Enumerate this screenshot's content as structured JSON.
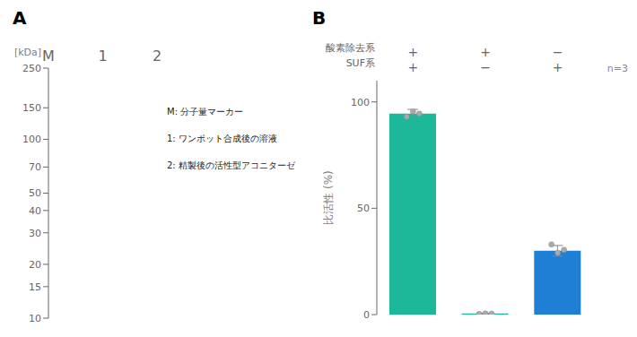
{
  "chart_data": [
    {
      "type": "gel",
      "title": "A",
      "categories": [
        "M",
        "1",
        "2"
      ],
      "ylabel": "[kDa]",
      "ylim": [
        10,
        250
      ],
      "yticks": [
        250,
        150,
        100,
        70,
        50,
        40,
        30,
        20,
        15,
        10
      ],
      "log": "y",
      "color": "#ddeaf8",
      "annotations": [
        "M: 分子量マーカー",
        "1: ワンポット合成後の溶液",
        "2: 精製後の活性型アコニターゼ"
      ]
    },
    {
      "type": "bar",
      "title": "B",
      "categories": [
        "+\n+",
        "+\n−",
        "−\n+"
      ],
      "values": [
        94.5,
        0.5,
        30.0
      ],
      "colors": [
        "#1DB89A",
        "#1DB89A",
        "#1F7FD4"
      ],
      "errors": [
        2.0,
        0.2,
        2.5
      ],
      "points": [
        [
          93.0,
          95.5,
          94.5
        ],
        [
          0.3,
          0.55,
          0.45
        ],
        [
          33.0,
          29.0,
          30.5
        ]
      ],
      "point_color": "#aaaaaa",
      "ylabel": "比活性 (%)",
      "ylim": [
        0,
        110
      ],
      "yticks": [
        0,
        50,
        100
      ],
      "row_labels": [
        "酸素除去系",
        "SUF系"
      ],
      "annotations": [
        "n=3"
      ]
    }
  ]
}
